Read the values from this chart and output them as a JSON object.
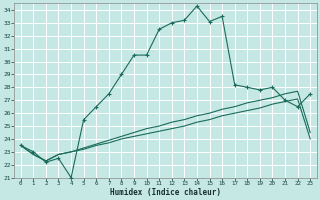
{
  "xlabel": "Humidex (Indice chaleur)",
  "bg_color": "#c5e8e5",
  "grid_color": "#ffffff",
  "line_color": "#1a6b5a",
  "xlim": [
    -0.5,
    23.5
  ],
  "ylim": [
    21,
    34.5
  ],
  "xticks": [
    0,
    1,
    2,
    3,
    4,
    5,
    6,
    7,
    8,
    9,
    10,
    11,
    12,
    13,
    14,
    15,
    16,
    17,
    18,
    19,
    20,
    21,
    22,
    23
  ],
  "yticks": [
    21,
    22,
    23,
    24,
    25,
    26,
    27,
    28,
    29,
    30,
    31,
    32,
    33,
    34
  ],
  "curve1_x": [
    0,
    1,
    2,
    3,
    4,
    5,
    6,
    7,
    8,
    9,
    10,
    11,
    12,
    13,
    14,
    15,
    16,
    17,
    18,
    19,
    20,
    21,
    22,
    23
  ],
  "curve1_y": [
    23.5,
    23.0,
    22.2,
    22.5,
    21.0,
    25.5,
    26.5,
    27.5,
    29.0,
    30.5,
    30.5,
    32.5,
    33.0,
    33.2,
    34.3,
    33.1,
    33.5,
    28.2,
    28.0,
    27.8,
    28.0,
    27.0,
    26.5,
    27.5
  ],
  "curve2_x": [
    0,
    1,
    2,
    3,
    4,
    5,
    6,
    7,
    8,
    9,
    10,
    11,
    12,
    13,
    14,
    15,
    16,
    17,
    18,
    19,
    20,
    21,
    22,
    23
  ],
  "curve2_y": [
    23.5,
    22.8,
    22.3,
    22.8,
    23.0,
    23.3,
    23.6,
    23.9,
    24.2,
    24.5,
    24.8,
    25.0,
    25.3,
    25.5,
    25.8,
    26.0,
    26.3,
    26.5,
    26.8,
    27.0,
    27.2,
    27.5,
    27.7,
    24.5
  ],
  "curve3_x": [
    0,
    1,
    2,
    3,
    4,
    5,
    6,
    7,
    8,
    9,
    10,
    11,
    12,
    13,
    14,
    15,
    16,
    17,
    18,
    19,
    20,
    21,
    22,
    23
  ],
  "curve3_y": [
    23.5,
    22.8,
    22.3,
    22.8,
    23.0,
    23.2,
    23.5,
    23.7,
    24.0,
    24.2,
    24.4,
    24.6,
    24.8,
    25.0,
    25.3,
    25.5,
    25.8,
    26.0,
    26.2,
    26.4,
    26.7,
    26.9,
    27.1,
    24.0
  ]
}
